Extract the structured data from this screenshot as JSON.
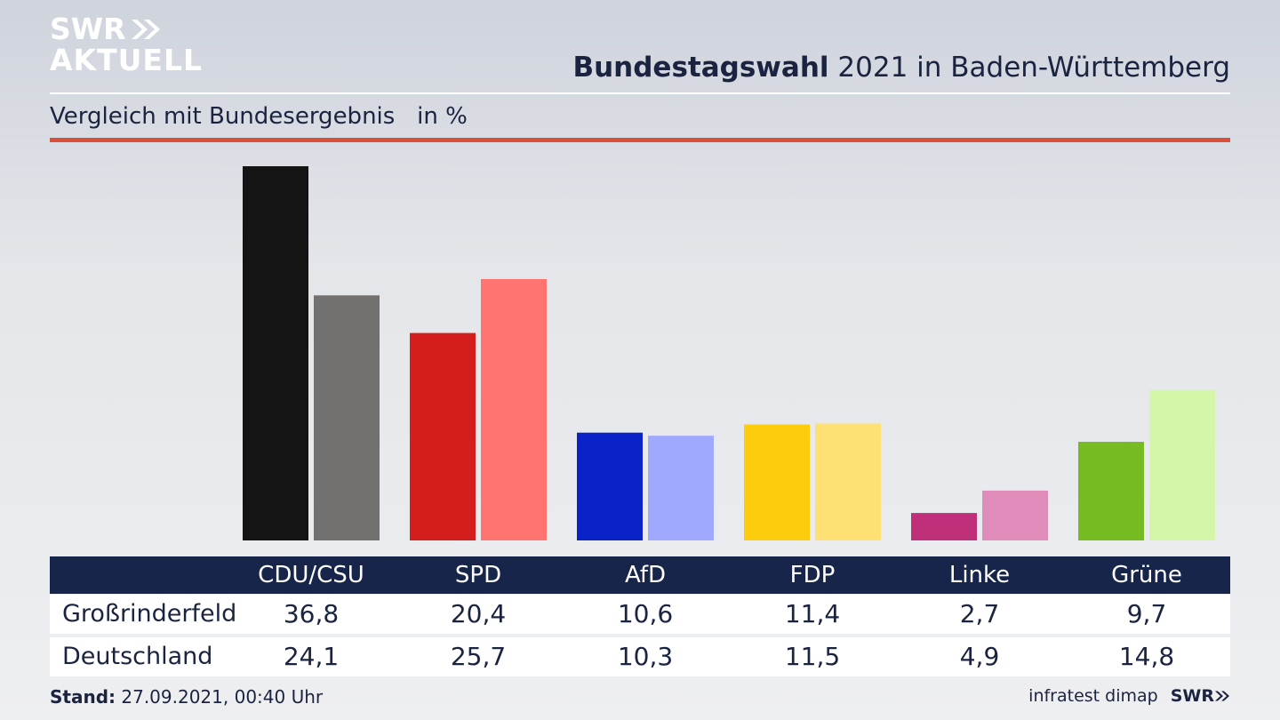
{
  "header": {
    "logo_line1": "SWR",
    "logo_line2": "AKTUELL",
    "title_bold": "Bundestagswahl",
    "title_rest": " 2021 in Baden-Württemberg",
    "subtitle": "Vergleich mit Bundesergebnis   in %"
  },
  "colors": {
    "background": "#e4e6ea",
    "table_header": "#17254a",
    "accent_rule": "#d9503a",
    "text": "#1a2340"
  },
  "chart_data": {
    "type": "bar",
    "categories": [
      "CDU/CSU",
      "SPD",
      "AfD",
      "FDP",
      "Linke",
      "Grüne"
    ],
    "series": [
      {
        "name": "Großrinderfeld",
        "values": [
          36.8,
          20.4,
          10.6,
          11.4,
          2.7,
          9.7
        ],
        "colors": [
          "#141414",
          "#d41e1e",
          "#0a22c8",
          "#fdcc0c",
          "#c0307a",
          "#77bb22"
        ]
      },
      {
        "name": "Deutschland",
        "values": [
          24.1,
          25.7,
          10.3,
          11.5,
          4.9,
          14.8
        ],
        "colors": [
          "#72716f",
          "#ff7470",
          "#9faaff",
          "#ffe074",
          "#e08cba",
          "#d3f6a8"
        ]
      }
    ],
    "ylim": [
      0,
      36.8
    ],
    "table_values_display": [
      [
        "36,8",
        "20,4",
        "10,6",
        "11,4",
        "2,7",
        "9,7"
      ],
      [
        "24,1",
        "25,7",
        "10,3",
        "11,5",
        "4,9",
        "14,8"
      ]
    ],
    "grid": false,
    "legend": "table-below"
  },
  "footer": {
    "stand_label": "Stand:",
    "stand_value": " 27.09.2021, 00:40 Uhr",
    "source": "infratest dimap",
    "source_logo": "SWR"
  }
}
